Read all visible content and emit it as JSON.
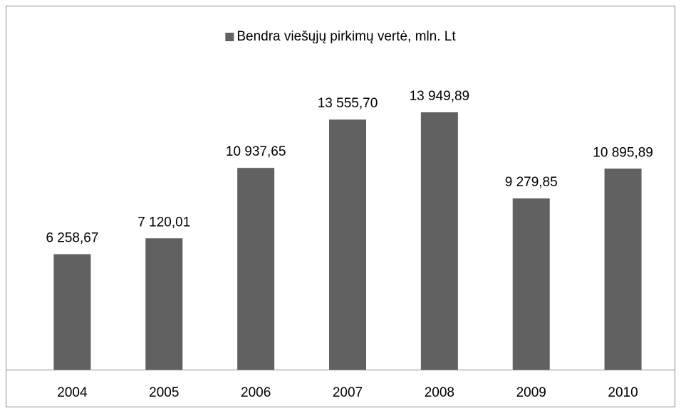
{
  "chart_data": {
    "type": "bar",
    "categories": [
      "2004",
      "2005",
      "2006",
      "2007",
      "2008",
      "2009",
      "2010"
    ],
    "series": [
      {
        "name": "Bendra viešųjų pirkimų vertė, mln. Lt",
        "color": "#616161",
        "values": [
          6258.67,
          7120.01,
          10937.65,
          13555.7,
          13949.89,
          9279.85,
          10895.89
        ],
        "value_labels": [
          "6 258,67",
          "7 120,01",
          "10 937,65",
          "13 555,70",
          "13 949,89",
          "9 279,85",
          "10 895,89"
        ]
      }
    ]
  }
}
